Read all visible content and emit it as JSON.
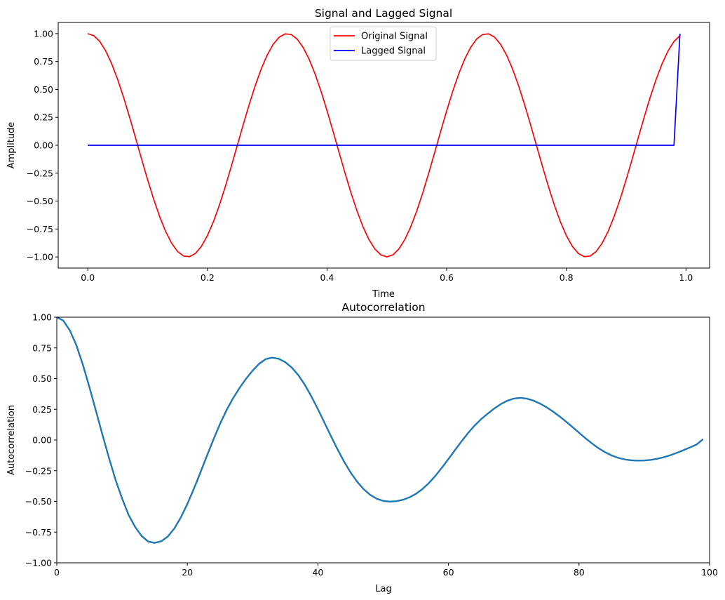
{
  "chart_data": [
    {
      "type": "line",
      "title": "Signal and Lagged Signal",
      "xlabel": "Time",
      "ylabel": "Amplitude",
      "xlim": [
        -0.0495,
        1.0395
      ],
      "ylim": [
        -1.1,
        1.1
      ],
      "xticks": [
        0.0,
        0.2,
        0.4,
        0.6,
        0.8,
        1.0
      ],
      "xtick_labels": [
        "0.0",
        "0.2",
        "0.4",
        "0.6",
        "0.8",
        "1.0"
      ],
      "yticks": [
        1.0,
        0.75,
        0.5,
        0.25,
        0.0,
        -0.25,
        -0.5,
        -0.75,
        -1.0
      ],
      "ytick_labels": [
        "1.00",
        "0.75",
        "0.50",
        "0.25",
        "0.00",
        "−0.25",
        "−0.50",
        "−0.75",
        "−1.00"
      ],
      "grid": false,
      "legend_position": "upper center",
      "series": [
        {
          "name": "Original Signal",
          "color": "#ff0000",
          "x": [
            0.0,
            0.01,
            0.02,
            0.03,
            0.04,
            0.05,
            0.06,
            0.07,
            0.08,
            0.09,
            0.1,
            0.11,
            0.12,
            0.13,
            0.14,
            0.15,
            0.16,
            0.17,
            0.18,
            0.19,
            0.2,
            0.21,
            0.22,
            0.23,
            0.24,
            0.25,
            0.26,
            0.27,
            0.28,
            0.29,
            0.3,
            0.31,
            0.32,
            0.33,
            0.34,
            0.35,
            0.36,
            0.37,
            0.38,
            0.39,
            0.4,
            0.41,
            0.42,
            0.43,
            0.44,
            0.45,
            0.46,
            0.47,
            0.48,
            0.49,
            0.5,
            0.51,
            0.52,
            0.53,
            0.54,
            0.55,
            0.56,
            0.57,
            0.58,
            0.59,
            0.6,
            0.61,
            0.62,
            0.63,
            0.64,
            0.65,
            0.66,
            0.67,
            0.68,
            0.69,
            0.7,
            0.71,
            0.72,
            0.73,
            0.74,
            0.75,
            0.76,
            0.77,
            0.78,
            0.79,
            0.8,
            0.81,
            0.82,
            0.83,
            0.84,
            0.85,
            0.86,
            0.87,
            0.88,
            0.89,
            0.9,
            0.91,
            0.92,
            0.93,
            0.94,
            0.95,
            0.96,
            0.97,
            0.98,
            0.99
          ],
          "y": [
            1.0,
            0.982,
            0.9298,
            0.8443,
            0.729,
            0.5878,
            0.4258,
            0.2487,
            0.0628,
            -0.1253,
            -0.309,
            -0.4818,
            -0.6374,
            -0.7705,
            -0.8763,
            -0.9511,
            -0.9921,
            -0.998,
            -0.9686,
            -0.9048,
            -0.809,
            -0.6845,
            -0.5358,
            -0.3681,
            -0.1874,
            0.0,
            0.1874,
            0.3681,
            0.5358,
            0.6845,
            0.809,
            0.9048,
            0.9686,
            0.998,
            0.9921,
            0.9511,
            0.8763,
            0.7705,
            0.6374,
            0.4818,
            0.309,
            0.1253,
            -0.0628,
            -0.2487,
            -0.4258,
            -0.5878,
            -0.729,
            -0.8443,
            -0.9298,
            -0.982,
            -1.0,
            -0.982,
            -0.9298,
            -0.8443,
            -0.729,
            -0.5878,
            -0.4258,
            -0.2487,
            -0.0628,
            0.1253,
            0.309,
            0.4818,
            0.6374,
            0.7705,
            0.8763,
            0.9511,
            0.9921,
            0.998,
            0.9686,
            0.9048,
            0.809,
            0.6845,
            0.5358,
            0.3681,
            0.1874,
            0.0,
            -0.1874,
            -0.3681,
            -0.5358,
            -0.6845,
            -0.809,
            -0.9048,
            -0.9686,
            -0.998,
            -0.9921,
            -0.9511,
            -0.8763,
            -0.7705,
            -0.6374,
            -0.4818,
            -0.309,
            -0.1253,
            0.0628,
            0.2487,
            0.4258,
            0.5878,
            0.729,
            0.8443,
            0.9298,
            0.982
          ]
        },
        {
          "name": "Lagged Signal",
          "color": "#0000ff",
          "x": [
            0.0,
            0.98,
            0.99
          ],
          "y": [
            0.0,
            0.0,
            1.0
          ]
        }
      ]
    },
    {
      "type": "line",
      "title": "Autocorrelation",
      "xlabel": "Lag",
      "ylabel": "Autocorrelation",
      "xlim": [
        0,
        100
      ],
      "ylim": [
        -1.0,
        1.0
      ],
      "xticks": [
        0,
        20,
        40,
        60,
        80,
        100
      ],
      "xtick_labels": [
        "0",
        "20",
        "40",
        "60",
        "80",
        "100"
      ],
      "yticks": [
        1.0,
        0.75,
        0.5,
        0.25,
        0.0,
        -0.25,
        -0.5,
        -0.75,
        -1.0
      ],
      "ytick_labels": [
        "1.00",
        "0.75",
        "0.50",
        "0.25",
        "0.00",
        "−0.25",
        "−0.50",
        "−0.75",
        "−1.00"
      ],
      "grid": false,
      "series": [
        {
          "color": "#1f77b4",
          "x": [
            0,
            1,
            2,
            3,
            4,
            5,
            6,
            7,
            8,
            9,
            10,
            11,
            12,
            13,
            14,
            15,
            16,
            17,
            18,
            19,
            20,
            21,
            22,
            23,
            24,
            25,
            26,
            27,
            28,
            29,
            30,
            31,
            32,
            33,
            34,
            35,
            36,
            37,
            38,
            39,
            40,
            41,
            42,
            43,
            44,
            45,
            46,
            47,
            48,
            49,
            50,
            51,
            52,
            53,
            54,
            55,
            56,
            57,
            58,
            59,
            60,
            61,
            62,
            63,
            64,
            65,
            66,
            67,
            68,
            69,
            70,
            71,
            72,
            73,
            74,
            75,
            76,
            77,
            78,
            79,
            80,
            81,
            82,
            83,
            84,
            85,
            86,
            87,
            88,
            89,
            90,
            91,
            92,
            93,
            94,
            95,
            96,
            97,
            98,
            99
          ],
          "y": [
            1.0,
            0.9722,
            0.8925,
            0.7718,
            0.6121,
            0.4299,
            0.2362,
            0.0419,
            -0.1466,
            -0.3245,
            -0.4756,
            -0.6104,
            -0.7081,
            -0.7816,
            -0.8266,
            -0.8373,
            -0.8247,
            -0.7866,
            -0.7206,
            -0.6306,
            -0.5211,
            -0.3971,
            -0.2643,
            -0.1284,
            0.0047,
            0.1302,
            0.2432,
            0.3399,
            0.4242,
            0.4995,
            0.5651,
            0.6206,
            0.6586,
            0.6707,
            0.6608,
            0.6339,
            0.5898,
            0.5281,
            0.4487,
            0.3549,
            0.2511,
            0.1415,
            0.0313,
            -0.0753,
            -0.1748,
            -0.2636,
            -0.3391,
            -0.4001,
            -0.4462,
            -0.4777,
            -0.4957,
            -0.5019,
            -0.4984,
            -0.4869,
            -0.4677,
            -0.4392,
            -0.4001,
            -0.3505,
            -0.2915,
            -0.2253,
            -0.1545,
            -0.0821,
            -0.0109,
            0.0565,
            0.1173,
            0.1696,
            0.2139,
            0.2559,
            0.2915,
            0.3194,
            0.3369,
            0.3429,
            0.3371,
            0.3212,
            0.2973,
            0.2672,
            0.2321,
            0.1929,
            0.1504,
            0.1054,
            0.0593,
            0.0139,
            -0.0289,
            -0.0672,
            -0.0997,
            -0.1257,
            -0.145,
            -0.1581,
            -0.1654,
            -0.168,
            -0.1668,
            -0.1617,
            -0.1527,
            -0.1399,
            -0.1236,
            -0.1044,
            -0.083,
            -0.0603,
            -0.0373,
            0.007
          ]
        }
      ]
    }
  ]
}
